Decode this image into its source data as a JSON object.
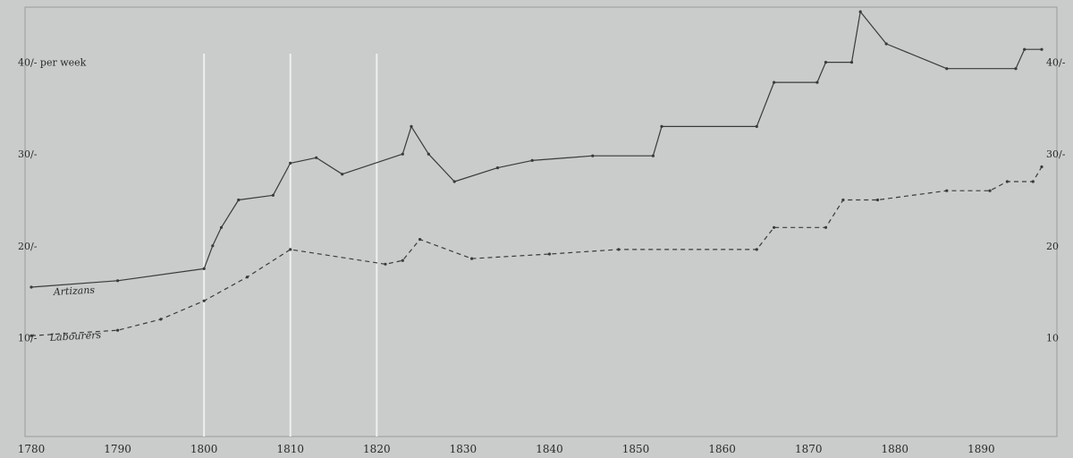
{
  "chart_data": {
    "type": "line",
    "title": "",
    "xlabel": "",
    "ylabel": "",
    "xlim": [
      1780,
      1897
    ],
    "ylim": [
      0,
      46
    ],
    "x_ticks": [
      1780,
      1790,
      1800,
      1810,
      1820,
      1830,
      1840,
      1850,
      1860,
      1870,
      1880,
      1890
    ],
    "x_tick_labels": [
      "1780",
      "1790",
      "1800",
      "1810",
      "1820",
      "1830",
      "1840",
      "1850",
      "1860",
      "1870",
      "1880",
      "1890"
    ],
    "y_ticks_left": [
      {
        "value": 40,
        "label": "40/- per week"
      },
      {
        "value": 30,
        "label": "30/-"
      },
      {
        "value": 20,
        "label": "20/-"
      },
      {
        "value": 10,
        "label": "10/-"
      }
    ],
    "y_ticks_right": [
      {
        "value": 40,
        "label": "40/-"
      },
      {
        "value": 30,
        "label": "30/-"
      },
      {
        "value": 20,
        "label": "20"
      },
      {
        "value": 10,
        "label": "10"
      }
    ],
    "grid_years": [
      1800,
      1810,
      1820
    ],
    "series": [
      {
        "name": "Artizans",
        "style": "solid",
        "points": [
          [
            1780,
            15.5
          ],
          [
            1790,
            16.2
          ],
          [
            1800,
            17.5
          ],
          [
            1801,
            20.0
          ],
          [
            1802,
            22.0
          ],
          [
            1804,
            25.0
          ],
          [
            1808,
            25.5
          ],
          [
            1810,
            29.0
          ],
          [
            1813,
            29.6
          ],
          [
            1816,
            27.8
          ],
          [
            1823,
            30.0
          ],
          [
            1824,
            33.0
          ],
          [
            1826,
            30.0
          ],
          [
            1829,
            27.0
          ],
          [
            1834,
            28.5
          ],
          [
            1838,
            29.3
          ],
          [
            1845,
            29.8
          ],
          [
            1852,
            29.8
          ],
          [
            1853,
            33.0
          ],
          [
            1864,
            33.0
          ],
          [
            1866,
            37.8
          ],
          [
            1871,
            37.8
          ],
          [
            1872,
            40.0
          ],
          [
            1875,
            40.0
          ],
          [
            1876,
            45.5
          ],
          [
            1879,
            42.0
          ],
          [
            1886,
            39.3
          ],
          [
            1894,
            39.3
          ],
          [
            1895,
            41.4
          ],
          [
            1897,
            41.4
          ]
        ]
      },
      {
        "name": "Labourers",
        "style": "dashed",
        "points": [
          [
            1780,
            10.2
          ],
          [
            1790,
            10.8
          ],
          [
            1795,
            12.0
          ],
          [
            1800,
            14.0
          ],
          [
            1805,
            16.6
          ],
          [
            1810,
            19.6
          ],
          [
            1821,
            18.0
          ],
          [
            1823,
            18.4
          ],
          [
            1825,
            20.7
          ],
          [
            1831,
            18.6
          ],
          [
            1840,
            19.1
          ],
          [
            1848,
            19.6
          ],
          [
            1864,
            19.6
          ],
          [
            1866,
            22.0
          ],
          [
            1872,
            22.0
          ],
          [
            1874,
            25.0
          ],
          [
            1878,
            25.0
          ],
          [
            1886,
            26.0
          ],
          [
            1891,
            26.0
          ],
          [
            1893,
            27.0
          ],
          [
            1896,
            27.0
          ],
          [
            1897,
            28.6
          ]
        ]
      }
    ]
  }
}
